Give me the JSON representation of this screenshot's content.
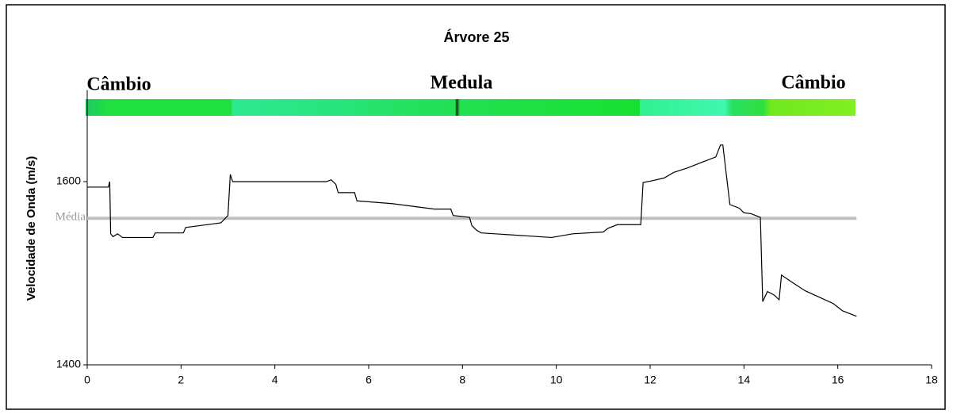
{
  "chart_data": {
    "type": "line",
    "title": "Árvore 25",
    "y_label": "Velocidade de Onda (m/s)",
    "zone_labels": [
      "Câmbio",
      "Medula",
      "Câmbio"
    ],
    "xlim": [
      0,
      18
    ],
    "xticks": [
      0,
      2,
      4,
      6,
      8,
      10,
      12,
      14,
      16,
      18
    ],
    "ylim": [
      1400,
      1700
    ],
    "yticks": [
      1400,
      1600
    ],
    "reference_line": {
      "label": "Média",
      "value": 1560,
      "x": [
        0,
        16.4
      ],
      "color": "#c0c0c0"
    },
    "x": [
      0,
      0.45,
      0.48,
      0.5,
      0.55,
      0.65,
      0.75,
      1.4,
      1.45,
      2.05,
      2.1,
      2.55,
      2.85,
      3.0,
      3.05,
      3.1,
      5.1,
      5.2,
      5.3,
      5.35,
      5.7,
      5.75,
      6.5,
      7.4,
      7.75,
      7.8,
      8.15,
      8.2,
      8.3,
      8.4,
      9.9,
      10.35,
      11.0,
      11.1,
      11.3,
      11.8,
      11.85,
      12.05,
      12.3,
      12.5,
      12.8,
      13.1,
      13.4,
      13.5,
      13.55,
      13.7,
      13.9,
      14.0,
      14.15,
      14.35,
      14.4,
      14.5,
      14.65,
      14.75,
      14.8,
      15.0,
      15.3,
      15.6,
      15.9,
      16.1,
      16.4
    ],
    "series": [
      {
        "name": "Velocidade",
        "color": "#000000",
        "values": [
          1594,
          1594,
          1600,
          1543,
          1540,
          1543,
          1539,
          1539,
          1544,
          1544,
          1550,
          1553,
          1555,
          1563,
          1608,
          1600,
          1600,
          1602,
          1597,
          1588,
          1588,
          1579,
          1576,
          1570,
          1570,
          1563,
          1561,
          1552,
          1547,
          1544,
          1539,
          1543,
          1545,
          1549,
          1553,
          1553,
          1599,
          1601,
          1604,
          1610,
          1615,
          1621,
          1627,
          1640,
          1640,
          1575,
          1571,
          1566,
          1565,
          1561,
          1469,
          1480,
          1476,
          1471,
          1498,
          1491,
          1481,
          1474,
          1467,
          1459,
          1453
        ]
      }
    ]
  }
}
